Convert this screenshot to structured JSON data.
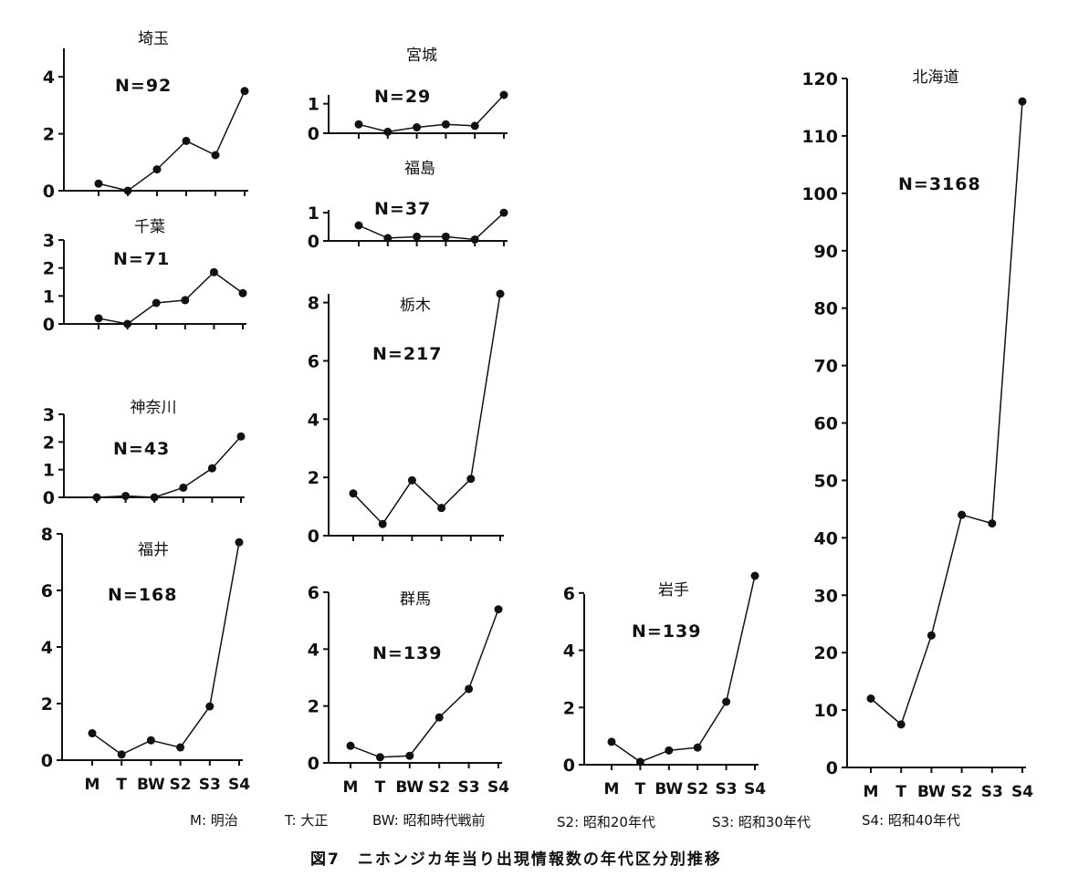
{
  "figure_caption": "図7　ニホンジカ年当り出現情報数の年代区分別推移",
  "legend": [
    "M: 明治",
    "T: 大正",
    "BW: 昭和時代戦前",
    "S2: 昭和20年代",
    "S3: 昭和30年代",
    "S4: 昭和40年代"
  ],
  "colors": {
    "ink": "#111111",
    "background": "#ffffff"
  },
  "chart_data": [
    {
      "type": "line",
      "id": "saitama",
      "title": "埼玉",
      "n_label": "N=92",
      "categories": [
        "M",
        "T",
        "BW",
        "S2",
        "S3",
        "S4"
      ],
      "values": [
        0.25,
        0.0,
        0.75,
        1.75,
        1.25,
        3.5
      ],
      "ylim": [
        0,
        5
      ],
      "yticks": [
        0,
        2,
        4
      ],
      "xlabels_shown": false,
      "grid": false
    },
    {
      "type": "line",
      "id": "chiba",
      "title": "千葉",
      "n_label": "N=71",
      "categories": [
        "M",
        "T",
        "BW",
        "S2",
        "S3",
        "S4"
      ],
      "values": [
        0.2,
        0.0,
        0.75,
        0.85,
        1.85,
        1.1
      ],
      "ylim": [
        0,
        3
      ],
      "yticks": [
        0,
        1,
        2,
        3
      ],
      "xlabels_shown": false,
      "grid": false
    },
    {
      "type": "line",
      "id": "kanagawa",
      "title": "神奈川",
      "n_label": "N=43",
      "categories": [
        "M",
        "T",
        "BW",
        "S2",
        "S3",
        "S4"
      ],
      "values": [
        0.0,
        0.05,
        0.0,
        0.35,
        1.05,
        2.2
      ],
      "ylim": [
        0,
        3
      ],
      "yticks": [
        0,
        1,
        2,
        3
      ],
      "xlabels_shown": false,
      "grid": false
    },
    {
      "type": "line",
      "id": "fukui",
      "title": "福井",
      "n_label": "N=168",
      "categories": [
        "M",
        "T",
        "BW",
        "S2",
        "S3",
        "S4"
      ],
      "values": [
        0.95,
        0.2,
        0.7,
        0.45,
        1.9,
        7.7
      ],
      "ylim": [
        0,
        8
      ],
      "yticks": [
        0,
        2,
        4,
        6,
        8
      ],
      "xlabels_shown": true,
      "grid": false
    },
    {
      "type": "line",
      "id": "miyagi",
      "title": "宮城",
      "n_label": "N=29",
      "categories": [
        "M",
        "T",
        "BW",
        "S2",
        "S3",
        "S4"
      ],
      "values": [
        0.3,
        0.05,
        0.2,
        0.3,
        0.25,
        1.3
      ],
      "ylim": [
        0,
        1.3
      ],
      "yticks": [
        0,
        1
      ],
      "xlabels_shown": false,
      "grid": false
    },
    {
      "type": "line",
      "id": "fukushima",
      "title": "福島",
      "n_label": "N=37",
      "categories": [
        "M",
        "T",
        "BW",
        "S2",
        "S3",
        "S4"
      ],
      "values": [
        0.55,
        0.1,
        0.15,
        0.15,
        0.05,
        1.0
      ],
      "ylim": [
        0,
        1.1
      ],
      "yticks": [
        0,
        1
      ],
      "xlabels_shown": false,
      "grid": false
    },
    {
      "type": "line",
      "id": "tochigi",
      "title": "栃木",
      "n_label": "N=217",
      "categories": [
        "M",
        "T",
        "BW",
        "S2",
        "S3",
        "S4"
      ],
      "values": [
        1.45,
        0.4,
        1.9,
        0.95,
        1.95,
        8.3
      ],
      "ylim": [
        0,
        8.3
      ],
      "yticks": [
        0,
        2,
        4,
        6,
        8
      ],
      "xlabels_shown": false,
      "grid": false
    },
    {
      "type": "line",
      "id": "gunma",
      "title": "群馬",
      "n_label": "N=139",
      "categories": [
        "M",
        "T",
        "BW",
        "S2",
        "S3",
        "S4"
      ],
      "values": [
        0.6,
        0.2,
        0.25,
        1.6,
        2.6,
        5.4
      ],
      "ylim": [
        0,
        6
      ],
      "yticks": [
        0,
        2,
        4,
        6
      ],
      "xlabels_shown": true,
      "grid": false
    },
    {
      "type": "line",
      "id": "iwate",
      "title": "岩手",
      "n_label": "N=139",
      "categories": [
        "M",
        "T",
        "BW",
        "S2",
        "S3",
        "S4"
      ],
      "values": [
        0.8,
        0.1,
        0.5,
        0.6,
        2.2,
        6.6
      ],
      "ylim": [
        0,
        6.6
      ],
      "yticks": [
        0,
        2,
        4,
        6
      ],
      "xlabels_shown": true,
      "grid": false
    },
    {
      "type": "line",
      "id": "hokkaido",
      "title": "北海道",
      "n_label": "N=3168",
      "categories": [
        "M",
        "T",
        "BW",
        "S2",
        "S3",
        "S4"
      ],
      "values": [
        12,
        7.5,
        23,
        44,
        42.5,
        116
      ],
      "ylim": [
        0,
        120
      ],
      "yticks": [
        0,
        10,
        20,
        30,
        40,
        50,
        60,
        70,
        80,
        90,
        100,
        110,
        120
      ],
      "xlabels_shown": true,
      "grid": false
    }
  ]
}
